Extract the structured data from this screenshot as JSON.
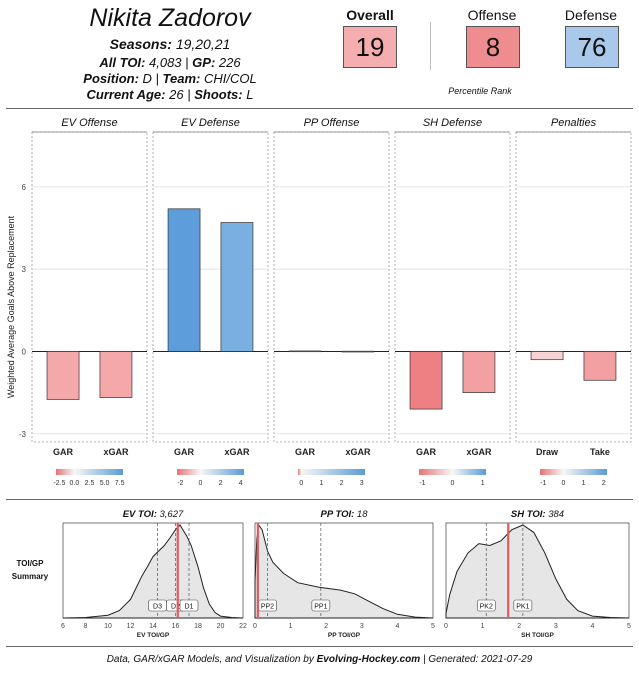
{
  "player": {
    "name": "Nikita Zadorov",
    "seasons_label": "Seasons:",
    "seasons": "19,20,21",
    "toi_label": "All TOI:",
    "toi": "4,083",
    "gp_label": "GP:",
    "gp": "226",
    "position_label": "Position:",
    "position": "D",
    "team_label": "Team:",
    "team": "CHI/COL",
    "age_label": "Current Age:",
    "age": "26",
    "shoots_label": "Shoots:",
    "shoots": "L"
  },
  "ranks": {
    "overall": {
      "label": "Overall",
      "value": "19",
      "color": "#f4aeb0"
    },
    "offense": {
      "label": "Offense",
      "value": "8",
      "color": "#ef8c8f"
    },
    "defense": {
      "label": "Defense",
      "value": "76",
      "color": "#a9c8ea"
    },
    "caption": "Percentile Rank"
  },
  "colors": {
    "negative": "#e57373",
    "positive": "#5b9bd5",
    "neutral": "#f7f7f7"
  },
  "chart_data": [
    {
      "type": "bar",
      "ylabel": "Weighted Average Goals Above Replacement",
      "ylim": [
        -3.3,
        8.0
      ],
      "yticks": [
        -3,
        0,
        3,
        6
      ],
      "panels": [
        {
          "title": "EV Offense",
          "categories": [
            "GAR",
            "xGAR"
          ],
          "values": [
            -1.75,
            -1.68
          ],
          "colors": [
            "#f5a8aa",
            "#f5a8aa"
          ],
          "legend_ticks": [
            "-2.5",
            "0.0",
            "2.5",
            "5.0",
            "7.5"
          ]
        },
        {
          "title": "EV Defense",
          "categories": [
            "GAR",
            "xGAR"
          ],
          "values": [
            5.2,
            4.7
          ],
          "colors": [
            "#5d9ddb",
            "#7aafe2"
          ],
          "legend_ticks": [
            "-2",
            "0",
            "2",
            "4"
          ]
        },
        {
          "title": "PP Offense",
          "categories": [
            "GAR",
            "xGAR"
          ],
          "values": [
            0.02,
            0.01
          ],
          "colors": [
            "#f2f2f2",
            "#f2f2f2"
          ],
          "legend_ticks": [
            "0",
            "1",
            "2",
            "3"
          ]
        },
        {
          "title": "SH Defense",
          "categories": [
            "GAR",
            "xGAR"
          ],
          "values": [
            -2.1,
            -1.5
          ],
          "colors": [
            "#ee7f83",
            "#f3a0a3"
          ],
          "legend_ticks": [
            "-1",
            "0",
            "1"
          ]
        },
        {
          "title": "Penalties",
          "categories": [
            "Draw",
            "Take"
          ],
          "values": [
            -0.3,
            -1.05
          ],
          "colors": [
            "#f8d3d4",
            "#f3a0a3"
          ],
          "legend_ticks": [
            "-1",
            "0",
            "1",
            "2"
          ]
        }
      ]
    },
    {
      "type": "area",
      "summary_label": "TOI/GP Summary",
      "panels": [
        {
          "title_label": "EV TOI:",
          "title_value": "3,627",
          "xlabel": "EV TOI/GP",
          "xlim": [
            6,
            22
          ],
          "xticks": [
            "6",
            "8",
            "10",
            "12",
            "14",
            "16",
            "18",
            "20",
            "22"
          ],
          "player_value": 16.2,
          "markers": [
            {
              "label": "D3",
              "x": 14.4
            },
            {
              "label": "D2",
              "x": 16.0
            },
            {
              "label": "D1",
              "x": 17.2
            }
          ],
          "density_x": [
            6,
            8,
            10,
            11,
            12,
            13,
            13.5,
            14,
            15,
            15.5,
            16,
            16.4,
            17,
            17.4,
            18,
            18.5,
            19,
            19.5,
            20,
            21,
            22
          ],
          "density_y": [
            0,
            0.005,
            0.03,
            0.08,
            0.2,
            0.45,
            0.55,
            0.66,
            0.78,
            0.86,
            0.95,
            1.0,
            0.88,
            0.78,
            0.55,
            0.32,
            0.15,
            0.06,
            0.02,
            0.005,
            0
          ]
        },
        {
          "title_label": "PP TOI:",
          "title_value": "18",
          "xlabel": "PP TOI/GP",
          "xlim": [
            0,
            5
          ],
          "xticks": [
            "0",
            "1",
            "2",
            "3",
            "4",
            "5"
          ],
          "player_value": 0.08,
          "markers": [
            {
              "label": "PP2",
              "x": 0.35
            },
            {
              "label": "PP1",
              "x": 1.85
            }
          ],
          "density_x": [
            0,
            0.05,
            0.1,
            0.2,
            0.35,
            0.5,
            0.8,
            1.2,
            1.8,
            2.4,
            2.8,
            3.2,
            3.6,
            4.0,
            4.5,
            5.0
          ],
          "density_y": [
            0.4,
            0.85,
            1.0,
            0.95,
            0.72,
            0.6,
            0.48,
            0.38,
            0.33,
            0.3,
            0.26,
            0.18,
            0.1,
            0.04,
            0.01,
            0
          ]
        },
        {
          "title_label": "SH TOI:",
          "title_value": "384",
          "xlabel": "SH TOI/GP",
          "xlim": [
            0,
            5
          ],
          "xticks": [
            "0",
            "1",
            "2",
            "3",
            "4",
            "5"
          ],
          "player_value": 1.7,
          "markers": [
            {
              "label": "PK2",
              "x": 1.1
            },
            {
              "label": "PK1",
              "x": 2.1
            }
          ],
          "density_x": [
            0,
            0.1,
            0.3,
            0.6,
            0.9,
            1.2,
            1.5,
            1.8,
            2.1,
            2.4,
            2.7,
            3.0,
            3.3,
            3.6,
            4.0,
            4.5,
            5.0
          ],
          "density_y": [
            0.05,
            0.25,
            0.5,
            0.7,
            0.8,
            0.78,
            0.83,
            0.95,
            1.0,
            0.92,
            0.7,
            0.42,
            0.2,
            0.08,
            0.02,
            0.005,
            0
          ]
        }
      ]
    }
  ],
  "footer": {
    "prefix": "Data, GAR/xGAR Models, and Visualization by",
    "site": "Evolving-Hockey.com",
    "suffix": "| Generated: 2021-07-29"
  }
}
